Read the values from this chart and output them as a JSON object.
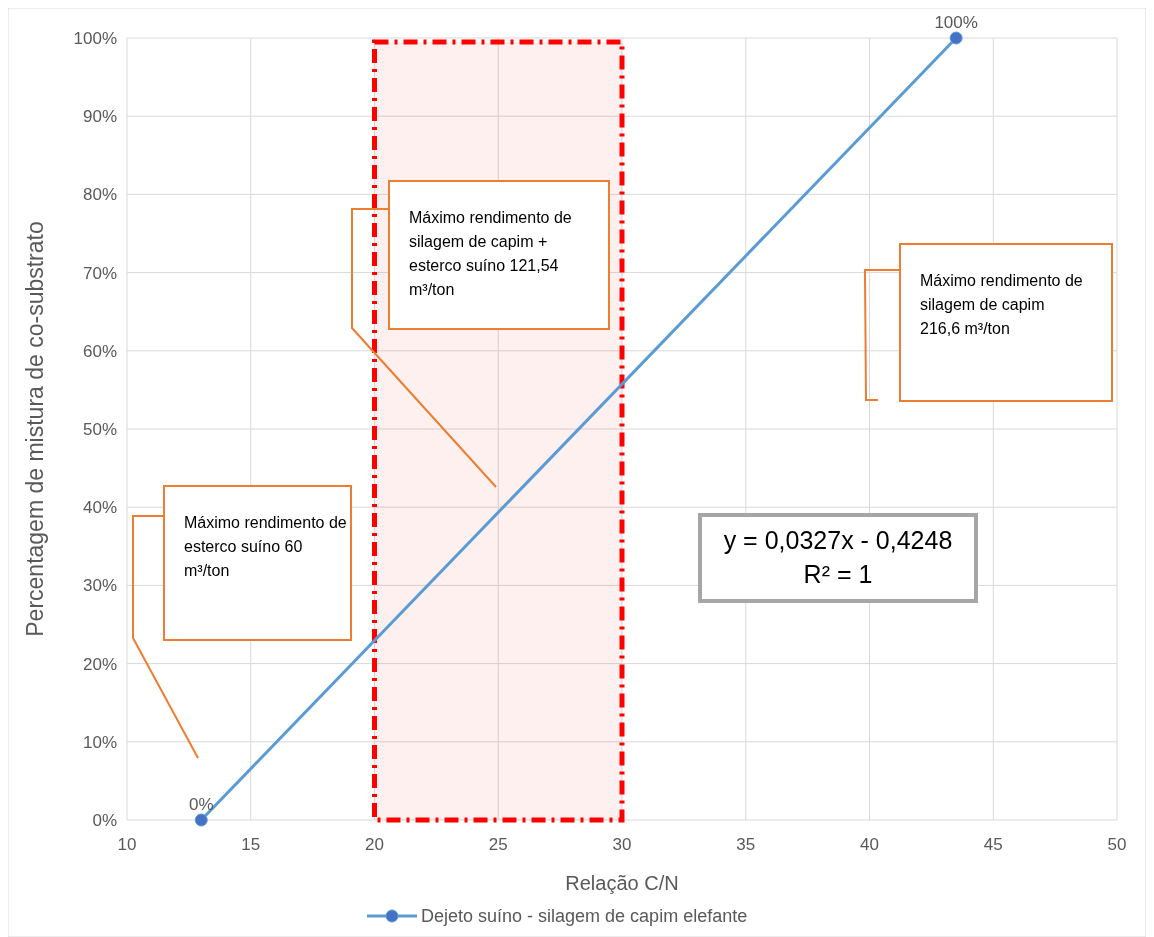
{
  "chart_data": {
    "type": "line",
    "xlabel": "Relação C/N",
    "ylabel": "Percentagem de mistura de co-substrato",
    "x": [
      13,
      43.5
    ],
    "series": [
      {
        "name": "Dejeto suíno - silagem de capim elefante",
        "color": "#5b9bd5",
        "values": [
          0,
          100
        ],
        "value_labels": [
          "0%",
          "100%"
        ]
      }
    ],
    "xlim": [
      10,
      50
    ],
    "xticks": [
      10,
      15,
      20,
      25,
      30,
      35,
      40,
      45,
      50
    ],
    "ylim": [
      0,
      100
    ],
    "yticks": [
      {
        "value": 0,
        "label": "0%"
      },
      {
        "value": 10,
        "label": "10%"
      },
      {
        "value": 20,
        "label": "20%"
      },
      {
        "value": 30,
        "label": "30%"
      },
      {
        "value": 40,
        "label": "40%"
      },
      {
        "value": 50,
        "label": "50%"
      },
      {
        "value": 60,
        "label": "60%"
      },
      {
        "value": 70,
        "label": "70%"
      },
      {
        "value": 80,
        "label": "80%"
      },
      {
        "value": 90,
        "label": "90%"
      },
      {
        "value": 100,
        "label": "100%"
      }
    ],
    "bands": [
      {
        "axis": "x",
        "from": 20,
        "to": 30,
        "color": "#ff0000"
      }
    ],
    "annotations": [
      "Máximo rendimento de silagem de capim + esterco suíno 121,54 m³/ton",
      "Máximo rendimento de silagem de capim 216,6 m³/ton",
      "Máximo rendimento de esterco suíno 60 m³/ton",
      "y = 0,0327x - 0,4248",
      "R² = 1"
    ],
    "grid": true,
    "legend": "bottom",
    "marker": "circle",
    "line_style": "solid"
  }
}
